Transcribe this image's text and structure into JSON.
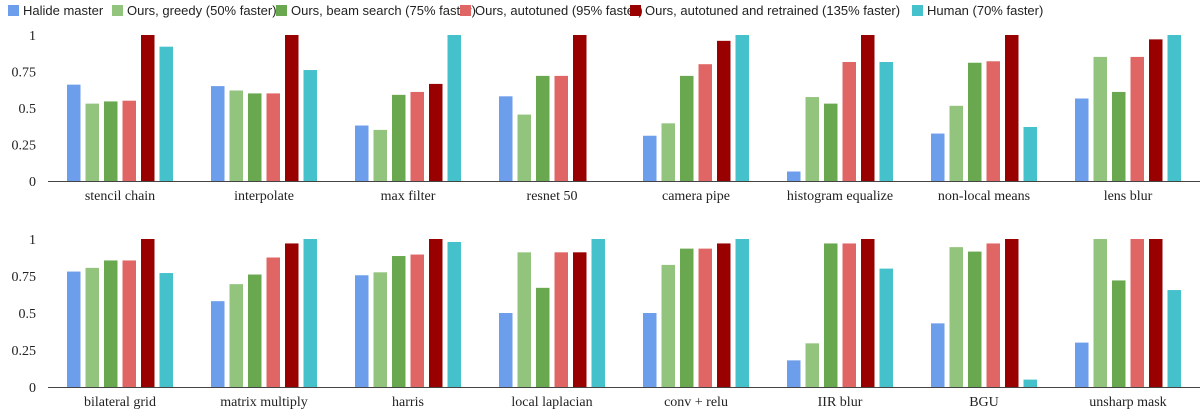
{
  "chart_data": {
    "type": "bar",
    "ylim": [
      0,
      1
    ],
    "yticks": [
      "0",
      "0.25",
      "0.5",
      "0.75",
      "1"
    ],
    "grid": false,
    "legend_position": "top",
    "series": [
      {
        "name": "Halide master",
        "color": "#6d9eeb"
      },
      {
        "name": "Ours, greedy (50% faster)",
        "color": "#93c47d"
      },
      {
        "name": "Ours, beam search (75% faster)",
        "color": "#6aa84f"
      },
      {
        "name": "Ours, autotuned (95% faster)",
        "color": "#e06666"
      },
      {
        "name": "Ours, autotuned and retrained (135% faster)",
        "color": "#990000"
      },
      {
        "name": "Human (70% faster)",
        "color": "#45c1cc"
      }
    ],
    "panels": [
      {
        "categories": [
          "stencil chain",
          "interpolate",
          "max filter",
          "resnet 50",
          "camera pipe",
          "histogram equalize",
          "non-local means",
          "lens blur"
        ],
        "values": [
          [
            0.66,
            0.53,
            0.545,
            0.55,
            1.0,
            0.92
          ],
          [
            0.65,
            0.62,
            0.6,
            0.6,
            1.0,
            0.76
          ],
          [
            0.38,
            0.35,
            0.59,
            0.61,
            0.665,
            1.0
          ],
          [
            0.58,
            0.455,
            0.72,
            0.72,
            1.0,
            0
          ],
          [
            0.31,
            0.395,
            0.72,
            0.8,
            0.96,
            1.0
          ],
          [
            0.065,
            0.575,
            0.53,
            0.815,
            1.0,
            0.815
          ],
          [
            0.325,
            0.515,
            0.81,
            0.82,
            1.0,
            0.37
          ],
          [
            0.565,
            0.85,
            0.61,
            0.85,
            0.97,
            1.0
          ]
        ]
      },
      {
        "categories": [
          "bilateral grid",
          "matrix multiply",
          "harris",
          "local laplacian",
          "conv + relu",
          "IIR blur",
          "BGU",
          "unsharp mask"
        ],
        "values": [
          [
            0.78,
            0.805,
            0.855,
            0.855,
            1.0,
            0.77
          ],
          [
            0.58,
            0.695,
            0.76,
            0.875,
            0.97,
            1.0
          ],
          [
            0.755,
            0.775,
            0.885,
            0.895,
            1.0,
            0.98
          ],
          [
            0.5,
            0.91,
            0.67,
            0.91,
            0.91,
            1.0
          ],
          [
            0.5,
            0.825,
            0.935,
            0.935,
            0.97,
            1.0
          ],
          [
            0.18,
            0.295,
            0.97,
            0.97,
            1.0,
            0.8
          ],
          [
            0.43,
            0.945,
            0.915,
            0.97,
            1.0,
            0.05
          ],
          [
            0.3,
            1.0,
            0.72,
            1.0,
            1.0,
            0.655
          ]
        ]
      }
    ]
  }
}
